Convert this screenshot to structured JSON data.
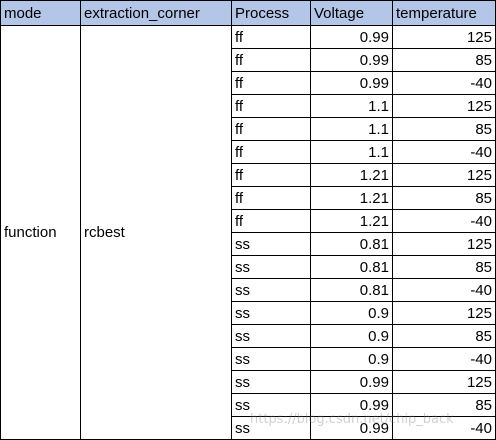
{
  "headers": [
    "mode",
    "extraction_corner",
    "Process",
    "Voltage",
    "temperature"
  ],
  "mode": "function",
  "extraction_corner": "rcbest",
  "rows": [
    {
      "process": "ff",
      "voltage": "0.99",
      "temperature": "125"
    },
    {
      "process": "ff",
      "voltage": "0.99",
      "temperature": "85"
    },
    {
      "process": "ff",
      "voltage": "0.99",
      "temperature": "-40"
    },
    {
      "process": "ff",
      "voltage": "1.1",
      "temperature": "125"
    },
    {
      "process": "ff",
      "voltage": "1.1",
      "temperature": "85"
    },
    {
      "process": "ff",
      "voltage": "1.1",
      "temperature": "-40"
    },
    {
      "process": "ff",
      "voltage": "1.21",
      "temperature": "125"
    },
    {
      "process": "ff",
      "voltage": "1.21",
      "temperature": "85"
    },
    {
      "process": "ff",
      "voltage": "1.21",
      "temperature": "-40"
    },
    {
      "process": "ss",
      "voltage": "0.81",
      "temperature": "125"
    },
    {
      "process": "ss",
      "voltage": "0.81",
      "temperature": "85"
    },
    {
      "process": "ss",
      "voltage": "0.81",
      "temperature": "-40"
    },
    {
      "process": "ss",
      "voltage": "0.9",
      "temperature": "125"
    },
    {
      "process": "ss",
      "voltage": "0.9",
      "temperature": "85"
    },
    {
      "process": "ss",
      "voltage": "0.9",
      "temperature": "-40"
    },
    {
      "process": "ss",
      "voltage": "0.99",
      "temperature": "125"
    },
    {
      "process": "ss",
      "voltage": "0.99",
      "temperature": "85"
    },
    {
      "process": "ss",
      "voltage": "0.99",
      "temperature": "-40"
    }
  ],
  "watermark": "https://blog.csdn.net/chip_back",
  "colors": {
    "header_fill": "#b4c6e7",
    "border": "#000000"
  }
}
